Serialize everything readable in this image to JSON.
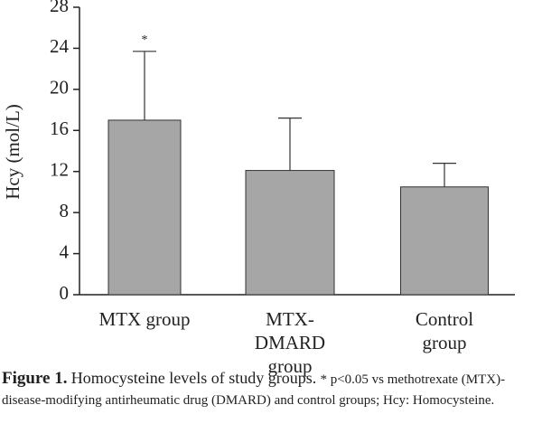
{
  "chart_data": {
    "type": "bar",
    "y_label": "Hcy (mol/L)",
    "categories": [
      "MTX group",
      "MTX-DMARD group",
      "Control group"
    ],
    "values": [
      17.0,
      12.1,
      10.5
    ],
    "errors": [
      6.7,
      5.1,
      2.3
    ],
    "color": "#a6a6a6",
    "ylim": [
      0,
      28
    ],
    "yticks": [
      0,
      4,
      8,
      12,
      16,
      20,
      24,
      28
    ],
    "annotations": [
      {
        "category": 0,
        "text": "*"
      }
    ]
  },
  "caption": {
    "label": "Figure 1.",
    "title": "Homocysteine levels of study groups.",
    "note": "* p<0.05 vs methotrexate (MTX)-disease-modifying antirheumatic drug (DMARD) and control groups; Hcy: Homocysteine."
  }
}
